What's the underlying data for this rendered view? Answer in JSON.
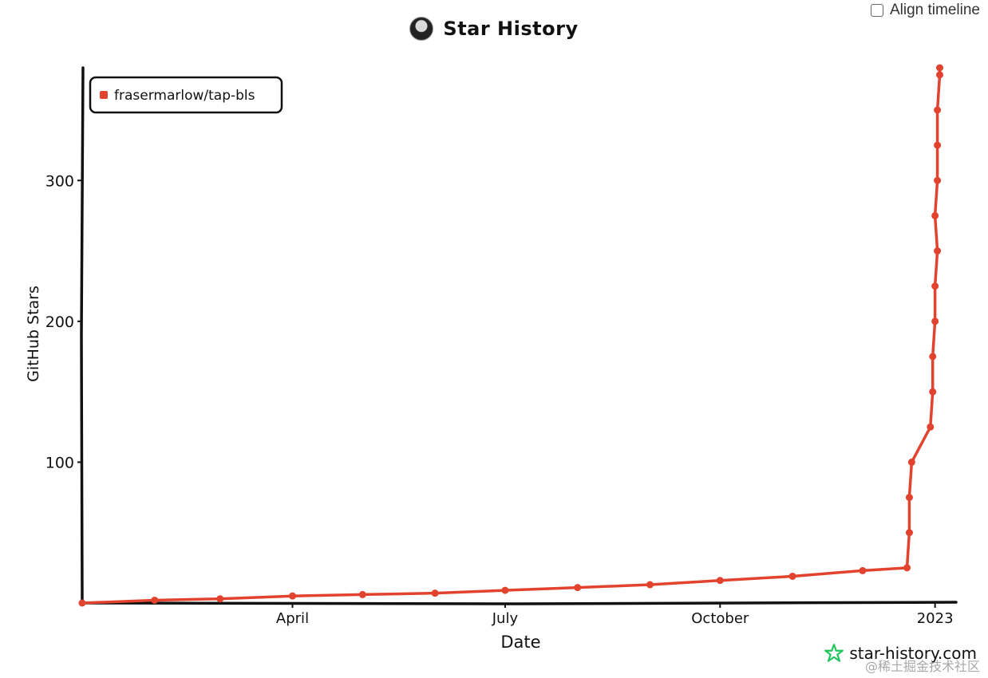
{
  "header": {
    "title": "Star History",
    "align_label": "Align timeline"
  },
  "watermarks": {
    "site": "star-history.com",
    "cn": "@稀土掘金技术社区"
  },
  "colors": {
    "series": "#e2432f",
    "axis": "#111111",
    "logo": "#22c55e"
  },
  "icons": {
    "avatar": "avatar-icon",
    "checkbox": "checkbox-icon",
    "logo": "star-logo-icon"
  },
  "chart_data": {
    "type": "line",
    "title": "Star History",
    "xlabel": "Date",
    "ylabel": "GitHub Stars",
    "xlim": [
      "2022-01-01",
      "2023-01-10"
    ],
    "ylim": [
      0,
      380
    ],
    "y_ticks": [
      100,
      200,
      300
    ],
    "x_ticks": [
      {
        "label": "April",
        "date": "2022-04-01"
      },
      {
        "label": "July",
        "date": "2022-07-01"
      },
      {
        "label": "October",
        "date": "2022-10-01"
      },
      {
        "label": "2023",
        "date": "2023-01-01"
      }
    ],
    "legend_placement": "top-left",
    "grid": false,
    "series": [
      {
        "name": "frasermarlow/tap-bls",
        "points": [
          {
            "date": "2022-01-01",
            "stars": 0
          },
          {
            "date": "2022-02-01",
            "stars": 2
          },
          {
            "date": "2022-03-01",
            "stars": 3
          },
          {
            "date": "2022-04-01",
            "stars": 5
          },
          {
            "date": "2022-05-01",
            "stars": 6
          },
          {
            "date": "2022-06-01",
            "stars": 7
          },
          {
            "date": "2022-07-01",
            "stars": 9
          },
          {
            "date": "2022-08-01",
            "stars": 11
          },
          {
            "date": "2022-09-01",
            "stars": 13
          },
          {
            "date": "2022-10-01",
            "stars": 16
          },
          {
            "date": "2022-11-01",
            "stars": 19
          },
          {
            "date": "2022-12-01",
            "stars": 23
          },
          {
            "date": "2022-12-20",
            "stars": 25
          },
          {
            "date": "2022-12-21",
            "stars": 50
          },
          {
            "date": "2022-12-21",
            "stars": 75
          },
          {
            "date": "2022-12-22",
            "stars": 100
          },
          {
            "date": "2022-12-30",
            "stars": 125
          },
          {
            "date": "2022-12-31",
            "stars": 150
          },
          {
            "date": "2022-12-31",
            "stars": 175
          },
          {
            "date": "2023-01-01",
            "stars": 200
          },
          {
            "date": "2023-01-01",
            "stars": 225
          },
          {
            "date": "2023-01-02",
            "stars": 250
          },
          {
            "date": "2023-01-01",
            "stars": 275
          },
          {
            "date": "2023-01-02",
            "stars": 300
          },
          {
            "date": "2023-01-02",
            "stars": 325
          },
          {
            "date": "2023-01-02",
            "stars": 350
          },
          {
            "date": "2023-01-03",
            "stars": 375
          },
          {
            "date": "2023-01-03",
            "stars": 380
          }
        ]
      }
    ]
  }
}
